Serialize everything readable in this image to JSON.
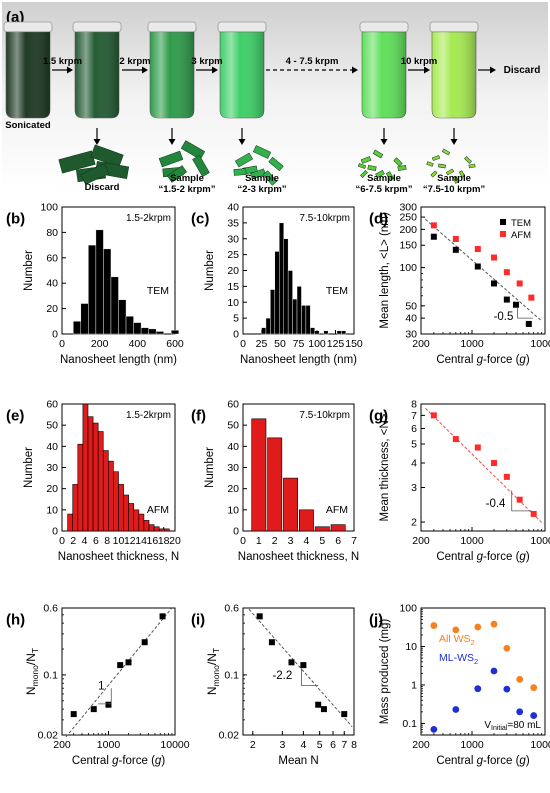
{
  "process": {
    "panel_label": "(a)",
    "vials": [
      {
        "label": "Sonicated",
        "color": "#1f3a25"
      },
      {
        "label": "",
        "color": "#245c33"
      },
      {
        "label": "",
        "color": "#2f9b4a"
      },
      {
        "label": "",
        "color": "#3fd068"
      },
      {
        "label": "",
        "color": "#5fe05a"
      },
      {
        "label": "",
        "color": "#a6ea52"
      }
    ],
    "steps": [
      "1.5 krpm",
      "2 krpm",
      "3 krpm",
      "4 - 7.5 krpm",
      "10 krpm",
      "Discard"
    ],
    "samples": [
      {
        "line1": "Discard",
        "line2": ""
      },
      {
        "line1": "Sample",
        "line2": "“1.5-2 krpm”"
      },
      {
        "line1": "Sample",
        "line2": "“2-3 krpm”"
      },
      {
        "line1": "Sample",
        "line2": "“6-7.5 krpm”"
      },
      {
        "line1": "Sample",
        "line2": "“7.5-10 krpm”"
      }
    ],
    "flake_colors": [
      "#1e5a2e",
      "#22873d",
      "#33b04e",
      "#5ecc3c",
      "#8fd43a"
    ]
  },
  "chart_data": [
    {
      "panel": "(b)",
      "type": "bar",
      "annotation": "1.5-2krpm",
      "method": "TEM",
      "xlabel": "Nanosheet length (nm)",
      "ylabel": "Number",
      "xlim": [
        0,
        600
      ],
      "ylim": [
        0,
        100
      ],
      "xticks": [
        "0",
        "200",
        "400",
        "600"
      ],
      "yticks": [
        "0",
        "20",
        "40",
        "60",
        "80",
        "100"
      ],
      "bin_width": 40,
      "bin_starts": [
        60,
        100,
        140,
        180,
        220,
        260,
        300,
        340,
        380,
        420,
        460,
        500,
        540,
        580
      ],
      "values": [
        10,
        24,
        70,
        82,
        67,
        45,
        27,
        14,
        9,
        5,
        4,
        2,
        0,
        3
      ]
    },
    {
      "panel": "(c)",
      "type": "bar",
      "annotation": "7.5-10krpm",
      "method": "TEM",
      "xlabel": "Nanosheet length (nm)",
      "ylabel": "Number",
      "xlim": [
        0,
        150
      ],
      "ylim": [
        0,
        40
      ],
      "xticks": [
        "0",
        "25",
        "50",
        "75",
        "100",
        "125",
        "150"
      ],
      "yticks": [
        "0",
        "5",
        "10",
        "15",
        "20",
        "25",
        "30",
        "35",
        "40"
      ],
      "bin_width": 6,
      "bin_starts": [
        25,
        31,
        37,
        43,
        49,
        55,
        61,
        67,
        73,
        79,
        85,
        91,
        97,
        103,
        109,
        115,
        121,
        127,
        133
      ],
      "values": [
        2,
        5,
        14,
        26,
        35,
        30,
        20,
        11,
        15,
        9,
        9,
        2,
        1,
        0,
        1,
        0,
        0,
        1,
        1
      ]
    },
    {
      "panel": "(d)",
      "type": "scatter",
      "xlabel": "Central g-force (g)",
      "ylabel": "Mean length, <L> (nm)",
      "xscale": "log",
      "yscale": "log",
      "xlim": [
        200,
        10000
      ],
      "ylim": [
        30,
        300
      ],
      "xticks": [
        "200",
        "1000",
        "10000"
      ],
      "yticks": [
        "30",
        "40",
        "50",
        "100",
        "150",
        "200",
        "250",
        "300"
      ],
      "series": [
        {
          "name": "TEM",
          "color": "#000000",
          "x": [
            300,
            600,
            1200,
            2000,
            3000,
            4000,
            6000
          ],
          "y": [
            175,
            138,
            102,
            75,
            56,
            51,
            36
          ]
        },
        {
          "name": "AFM",
          "color": "#ff2a2a",
          "x": [
            300,
            600,
            1200,
            2000,
            3000,
            4500,
            6500
          ],
          "y": [
            215,
            168,
            140,
            120,
            92,
            75,
            58
          ]
        }
      ],
      "fit": {
        "x": [
          230,
          9000
        ],
        "y": [
          240,
          38
        ],
        "color": "#555555"
      },
      "slope_label": "-0.5"
    },
    {
      "panel": "(e)",
      "type": "bar",
      "annotation": "1.5-2krpm",
      "method": "AFM",
      "xlabel": "Nanosheet thickness, N",
      "ylabel": "Number",
      "xlim": [
        0,
        20
      ],
      "ylim": [
        0,
        60
      ],
      "xticks": [
        "0",
        "2",
        "4",
        "6",
        "8",
        "10",
        "12",
        "14",
        "16",
        "18",
        "20"
      ],
      "yticks": [
        "0",
        "10",
        "20",
        "30",
        "40",
        "50",
        "60"
      ],
      "bin_width": 0.9,
      "bin_starts": [
        1.0,
        1.9,
        2.8,
        3.7,
        4.6,
        5.5,
        6.4,
        7.3,
        8.2,
        9.1,
        10.0,
        10.9,
        11.8,
        12.7,
        13.6,
        14.5,
        15.4,
        16.3,
        17.2,
        18.1
      ],
      "values": [
        8,
        22,
        41,
        60,
        54,
        51,
        47,
        38,
        33,
        28,
        22,
        17,
        13,
        10,
        8,
        5,
        3,
        2,
        1,
        1
      ]
    },
    {
      "panel": "(f)",
      "type": "bar",
      "annotation": "7.5-10krpm",
      "method": "AFM",
      "xlabel": "Nanosheet thickness, N",
      "ylabel": "Number",
      "xlim": [
        0,
        7
      ],
      "ylim": [
        0,
        60
      ],
      "xticks": [
        "0",
        "1",
        "2",
        "3",
        "4",
        "5",
        "6",
        "7"
      ],
      "yticks": [
        "0",
        "10",
        "20",
        "30",
        "40",
        "50",
        "60"
      ],
      "bin_width": 0.9,
      "bin_starts": [
        0.55,
        1.55,
        2.55,
        3.55,
        4.55,
        5.55
      ],
      "values": [
        53,
        44,
        25,
        10,
        2,
        3
      ]
    },
    {
      "panel": "(g)",
      "type": "scatter",
      "xlabel": "Central g-force (g)",
      "ylabel": "Mean thickness, <N>",
      "xscale": "log",
      "yscale": "log",
      "xlim": [
        200,
        10000
      ],
      "ylim": [
        1.8,
        8
      ],
      "xticks": [
        "200",
        "1000",
        "10000"
      ],
      "yticks": [
        "2",
        "3",
        "4",
        "5",
        "6",
        "7",
        "8"
      ],
      "series": [
        {
          "name": "",
          "color": "#ff2a2a",
          "x": [
            300,
            600,
            1200,
            2000,
            3000,
            4500,
            7000
          ],
          "y": [
            7.0,
            5.3,
            4.8,
            4.0,
            3.4,
            2.6,
            2.2
          ]
        }
      ],
      "fit": {
        "x": [
          230,
          9500
        ],
        "y": [
          7.6,
          1.95
        ],
        "color": "#ff4444"
      },
      "slope_label": "-0.4"
    },
    {
      "panel": "(h)",
      "type": "scatter",
      "xlabel": "Central g-force (g)",
      "ylabel": "Nmono/NT",
      "xscale": "log",
      "yscale": "log",
      "xlim": [
        200,
        10000
      ],
      "ylim": [
        0.02,
        0.6
      ],
      "xticks": [
        "200",
        "1000",
        "10000"
      ],
      "yticks": [
        "0.02",
        "0.1",
        "0.6"
      ],
      "series": [
        {
          "name": "",
          "color": "#000000",
          "x": [
            300,
            600,
            1000,
            1500,
            2000,
            3500,
            6500
          ],
          "y": [
            0.035,
            0.04,
            0.045,
            0.13,
            0.14,
            0.24,
            0.48
          ]
        }
      ],
      "fit": {
        "x": [
          230,
          8800
        ],
        "y": [
          0.019,
          0.59
        ],
        "color": "#555555"
      },
      "slope_label": "1"
    },
    {
      "panel": "(i)",
      "type": "scatter",
      "xlabel": "Mean N",
      "ylabel": "Nmono/NT",
      "xscale": "log",
      "yscale": "log",
      "xlim": [
        1.75,
        8
      ],
      "ylim": [
        0.02,
        0.6
      ],
      "xticks": [
        "2",
        "3",
        "4",
        "5",
        "6",
        "7",
        "8"
      ],
      "yticks": [
        "0.02",
        "0.1",
        "0.6"
      ],
      "series": [
        {
          "name": "",
          "color": "#000000",
          "x": [
            2.2,
            2.6,
            3.4,
            4.0,
            4.9,
            5.3,
            7.0
          ],
          "y": [
            0.48,
            0.24,
            0.14,
            0.13,
            0.045,
            0.04,
            0.035
          ]
        }
      ],
      "fit": {
        "x": [
          1.9,
          7.8
        ],
        "y": [
          0.58,
          0.025
        ],
        "color": "#555555"
      },
      "slope_label": "-2.2"
    },
    {
      "panel": "(j)",
      "type": "scatter",
      "xlabel": "Central g-force (g)",
      "ylabel": "Mass produced (mg)",
      "xscale": "log",
      "yscale": "log",
      "xlim": [
        200,
        10000
      ],
      "ylim": [
        0.05,
        100
      ],
      "xticks": [
        "200",
        "1000",
        "10000"
      ],
      "yticks": [
        "0.1",
        "1",
        "10",
        "100"
      ],
      "series": [
        {
          "name": "All WS2",
          "color": "#f58220",
          "x": [
            300,
            600,
            1200,
            2000,
            3000,
            4500,
            7000
          ],
          "y": [
            35,
            27,
            32,
            38,
            9,
            1.4,
            0.85
          ]
        },
        {
          "name": "ML-WS2",
          "color": "#1f2ed6",
          "x": [
            300,
            600,
            1200,
            2000,
            3000,
            4500,
            7000
          ],
          "y": [
            0.07,
            0.23,
            0.8,
            2.3,
            0.78,
            0.2,
            0.16
          ]
        }
      ],
      "annotation": "V",
      "annotation_sub": "Initial",
      "annotation_rest": "=80 mL"
    }
  ]
}
